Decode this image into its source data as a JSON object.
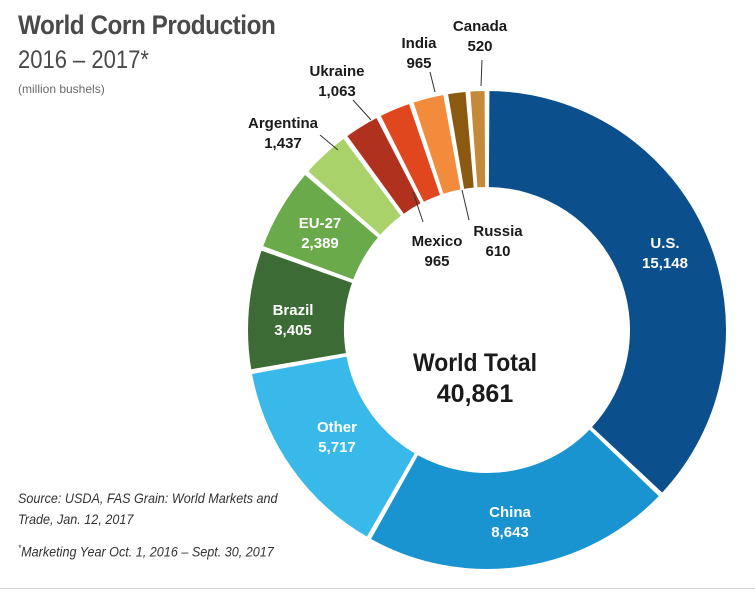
{
  "header": {
    "title": "World Corn Production",
    "subtitle": "2016 – 2017*",
    "unit": "(million bushels)"
  },
  "footer": {
    "source": "Source: USDA, FAS Grain: World Markets and Trade, Jan. 12, 2017",
    "footnote_mark": "*",
    "footnote": "Marketing Year Oct. 1, 2016 – Sept. 30, 2017"
  },
  "center": {
    "label": "World Total",
    "value": "40,861"
  },
  "colors": {
    "text_dark": "#1a1a1a",
    "label_light": "#ffffff"
  },
  "chart_data": {
    "type": "pie",
    "donut": true,
    "title": "World Corn Production",
    "subtitle": "2016 – 2017*",
    "unit": "(million bushels)",
    "total": 40861,
    "slices": [
      {
        "label": "U.S.",
        "value": 15148,
        "display": "15,148",
        "color": "#0b4f8c"
      },
      {
        "label": "China",
        "value": 8643,
        "display": "8,643",
        "color": "#1a93d1"
      },
      {
        "label": "Other",
        "value": 5717,
        "display": "5,717",
        "color": "#39b9ea"
      },
      {
        "label": "Brazil",
        "value": 3405,
        "display": "3,405",
        "color": "#3d6b35"
      },
      {
        "label": "EU-27",
        "value": 2389,
        "display": "2,389",
        "color": "#6aaa4a"
      },
      {
        "label": "Argentina",
        "value": 1437,
        "display": "1,437",
        "color": "#a9d36a"
      },
      {
        "label": "Ukraine",
        "value": 1063,
        "display": "1,063",
        "color": "#b1311f"
      },
      {
        "label": "Mexico",
        "value": 965,
        "display": "965",
        "color": "#e0471f"
      },
      {
        "label": "India",
        "value": 965,
        "display": "965",
        "color": "#f28b3c"
      },
      {
        "label": "Russia",
        "value": 610,
        "display": "610",
        "color": "#8b5a10"
      },
      {
        "label": "Canada",
        "value": 520,
        "display": "520",
        "color": "#c48a3a"
      }
    ]
  }
}
